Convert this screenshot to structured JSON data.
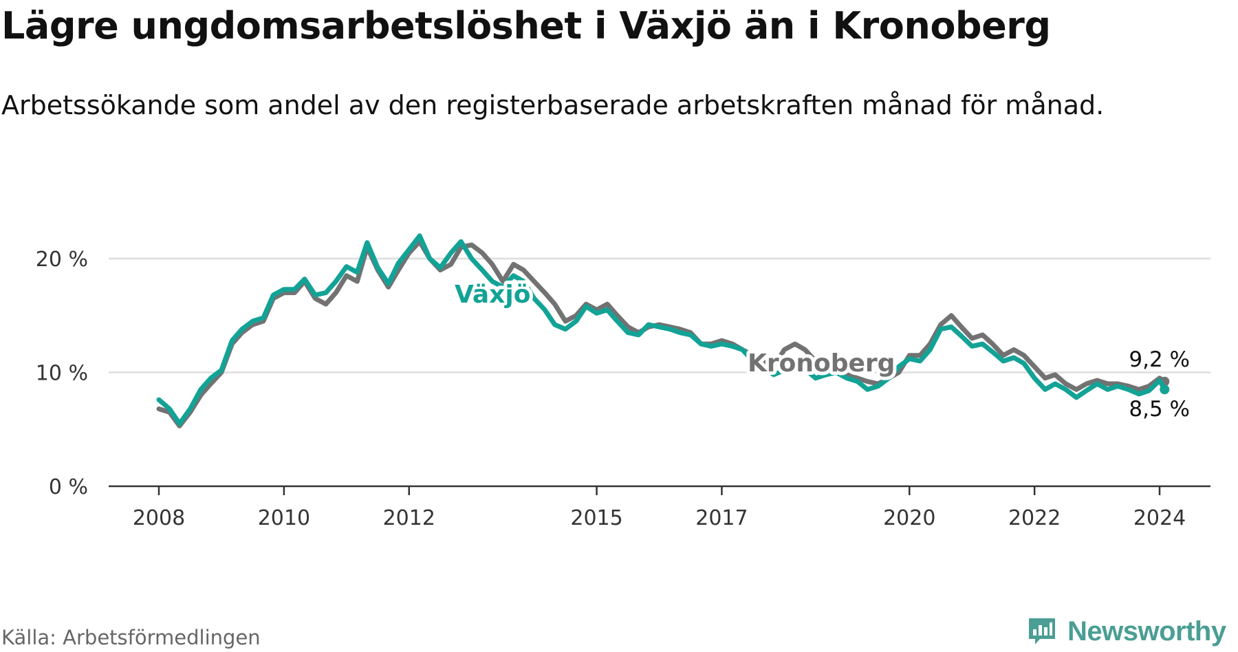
{
  "title": "Lägre ungdomsarbetslöshet i Växjö än i Kronoberg",
  "subtitle": "Arbetssökande som andel av den registerbaserade arbetskraften månad för månad.",
  "source": "Källa: Arbetsförmedlingen",
  "brand": "Newsworthy",
  "colors": {
    "vaxjo": "#12a396",
    "kronoberg": "#727272",
    "grid": "#dddddd",
    "axis": "#333333",
    "brand": "#4a9e94"
  },
  "chart_data": {
    "type": "line",
    "title": "Lägre ungdomsarbetslöshet i Växjö än i Kronoberg",
    "ylabel": "",
    "xlabel": "",
    "ylim": [
      0,
      20
    ],
    "xlim": [
      2007.6,
      2024.5
    ],
    "yticks": [
      {
        "value": 0,
        "label": "0 %"
      },
      {
        "value": 10,
        "label": "10 %"
      },
      {
        "value": 20,
        "label": "20 %"
      }
    ],
    "xticks": [
      {
        "value": 2008,
        "label": "2008"
      },
      {
        "value": 2010,
        "label": "2010"
      },
      {
        "value": 2012,
        "label": "2012"
      },
      {
        "value": 2015,
        "label": "2015"
      },
      {
        "value": 2017,
        "label": "2017"
      },
      {
        "value": 2020,
        "label": "2020"
      },
      {
        "value": 2022,
        "label": "2022"
      },
      {
        "value": 2024,
        "label": "2024"
      }
    ],
    "series": [
      {
        "name": "Kronoberg",
        "key": "kronoberg",
        "label": "Kronoberg",
        "end_label": "9,2 %",
        "points": [
          [
            2008.0,
            6.8
          ],
          [
            2008.17,
            6.5
          ],
          [
            2008.33,
            5.3
          ],
          [
            2008.5,
            6.5
          ],
          [
            2008.67,
            8.0
          ],
          [
            2008.83,
            9.0
          ],
          [
            2009.0,
            10.0
          ],
          [
            2009.17,
            12.5
          ],
          [
            2009.33,
            13.5
          ],
          [
            2009.5,
            14.2
          ],
          [
            2009.67,
            14.5
          ],
          [
            2009.83,
            16.5
          ],
          [
            2010.0,
            17.0
          ],
          [
            2010.17,
            17.0
          ],
          [
            2010.33,
            18.0
          ],
          [
            2010.5,
            16.5
          ],
          [
            2010.67,
            16.0
          ],
          [
            2010.83,
            17.0
          ],
          [
            2011.0,
            18.5
          ],
          [
            2011.17,
            18.0
          ],
          [
            2011.33,
            21.0
          ],
          [
            2011.5,
            19.0
          ],
          [
            2011.67,
            17.5
          ],
          [
            2011.83,
            19.0
          ],
          [
            2012.0,
            20.5
          ],
          [
            2012.17,
            21.5
          ],
          [
            2012.33,
            20.0
          ],
          [
            2012.5,
            19.0
          ],
          [
            2012.67,
            19.5
          ],
          [
            2012.83,
            21.0
          ],
          [
            2013.0,
            21.2
          ],
          [
            2013.17,
            20.5
          ],
          [
            2013.33,
            19.5
          ],
          [
            2013.5,
            18.0
          ],
          [
            2013.67,
            19.5
          ],
          [
            2013.83,
            19.0
          ],
          [
            2014.0,
            18.0
          ],
          [
            2014.17,
            17.0
          ],
          [
            2014.33,
            16.0
          ],
          [
            2014.5,
            14.5
          ],
          [
            2014.67,
            15.0
          ],
          [
            2014.83,
            16.0
          ],
          [
            2015.0,
            15.5
          ],
          [
            2015.17,
            16.0
          ],
          [
            2015.33,
            15.0
          ],
          [
            2015.5,
            14.0
          ],
          [
            2015.67,
            13.5
          ],
          [
            2015.83,
            14.0
          ],
          [
            2016.0,
            14.2
          ],
          [
            2016.17,
            14.0
          ],
          [
            2016.33,
            13.8
          ],
          [
            2016.5,
            13.5
          ],
          [
            2016.67,
            12.5
          ],
          [
            2016.83,
            12.5
          ],
          [
            2017.0,
            12.8
          ],
          [
            2017.17,
            12.5
          ],
          [
            2017.33,
            12.0
          ],
          [
            2017.5,
            11.5
          ],
          [
            2017.67,
            11.0
          ],
          [
            2017.83,
            10.5
          ],
          [
            2018.0,
            12.0
          ],
          [
            2018.17,
            12.5
          ],
          [
            2018.33,
            12.0
          ],
          [
            2018.5,
            11.0
          ],
          [
            2018.67,
            10.5
          ],
          [
            2018.83,
            10.0
          ],
          [
            2019.0,
            9.8
          ],
          [
            2019.17,
            9.5
          ],
          [
            2019.33,
            9.2
          ],
          [
            2019.5,
            9.0
          ],
          [
            2019.67,
            9.5
          ],
          [
            2019.83,
            10.0
          ],
          [
            2020.0,
            11.5
          ],
          [
            2020.17,
            11.5
          ],
          [
            2020.33,
            12.5
          ],
          [
            2020.5,
            14.2
          ],
          [
            2020.67,
            15.0
          ],
          [
            2020.83,
            14.0
          ],
          [
            2021.0,
            13.0
          ],
          [
            2021.17,
            13.3
          ],
          [
            2021.33,
            12.5
          ],
          [
            2021.5,
            11.5
          ],
          [
            2021.67,
            12.0
          ],
          [
            2021.83,
            11.5
          ],
          [
            2022.0,
            10.5
          ],
          [
            2022.17,
            9.5
          ],
          [
            2022.33,
            9.8
          ],
          [
            2022.5,
            9.0
          ],
          [
            2022.67,
            8.5
          ],
          [
            2022.83,
            9.0
          ],
          [
            2023.0,
            9.3
          ],
          [
            2023.17,
            9.0
          ],
          [
            2023.33,
            9.0
          ],
          [
            2023.5,
            8.8
          ],
          [
            2023.67,
            8.5
          ],
          [
            2023.83,
            8.8
          ],
          [
            2024.0,
            9.5
          ],
          [
            2024.08,
            9.2
          ]
        ]
      },
      {
        "name": "Växjö",
        "key": "vaxjo",
        "label": "Växjö",
        "end_label": "8,5 %",
        "points": [
          [
            2008.0,
            7.6
          ],
          [
            2008.17,
            6.8
          ],
          [
            2008.33,
            5.5
          ],
          [
            2008.5,
            6.8
          ],
          [
            2008.67,
            8.5
          ],
          [
            2008.83,
            9.5
          ],
          [
            2009.0,
            10.2
          ],
          [
            2009.17,
            12.8
          ],
          [
            2009.33,
            13.8
          ],
          [
            2009.5,
            14.5
          ],
          [
            2009.67,
            14.8
          ],
          [
            2009.83,
            16.8
          ],
          [
            2010.0,
            17.3
          ],
          [
            2010.17,
            17.3
          ],
          [
            2010.33,
            18.2
          ],
          [
            2010.5,
            16.8
          ],
          [
            2010.67,
            17.0
          ],
          [
            2010.83,
            18.0
          ],
          [
            2011.0,
            19.3
          ],
          [
            2011.17,
            18.8
          ],
          [
            2011.33,
            21.4
          ],
          [
            2011.5,
            19.2
          ],
          [
            2011.67,
            17.8
          ],
          [
            2011.83,
            19.6
          ],
          [
            2012.0,
            20.8
          ],
          [
            2012.17,
            22.0
          ],
          [
            2012.33,
            20.0
          ],
          [
            2012.5,
            19.2
          ],
          [
            2012.67,
            20.5
          ],
          [
            2012.83,
            21.5
          ],
          [
            2013.0,
            20.0
          ],
          [
            2013.17,
            19.0
          ],
          [
            2013.33,
            18.0
          ],
          [
            2013.5,
            17.5
          ],
          [
            2013.67,
            18.5
          ],
          [
            2013.83,
            18.0
          ],
          [
            2014.0,
            16.5
          ],
          [
            2014.17,
            15.5
          ],
          [
            2014.33,
            14.2
          ],
          [
            2014.5,
            13.8
          ],
          [
            2014.67,
            14.5
          ],
          [
            2014.83,
            15.8
          ],
          [
            2015.0,
            15.2
          ],
          [
            2015.17,
            15.5
          ],
          [
            2015.33,
            14.5
          ],
          [
            2015.5,
            13.5
          ],
          [
            2015.67,
            13.3
          ],
          [
            2015.83,
            14.2
          ],
          [
            2016.0,
            14.0
          ],
          [
            2016.17,
            13.8
          ],
          [
            2016.33,
            13.5
          ],
          [
            2016.5,
            13.3
          ],
          [
            2016.67,
            12.5
          ],
          [
            2016.83,
            12.3
          ],
          [
            2017.0,
            12.5
          ],
          [
            2017.17,
            12.3
          ],
          [
            2017.33,
            12.0
          ],
          [
            2017.5,
            11.0
          ],
          [
            2017.67,
            10.5
          ],
          [
            2017.83,
            9.8
          ],
          [
            2018.0,
            10.2
          ],
          [
            2018.17,
            10.5
          ],
          [
            2018.33,
            10.3
          ],
          [
            2018.5,
            9.5
          ],
          [
            2018.67,
            9.8
          ],
          [
            2018.83,
            10.0
          ],
          [
            2019.0,
            9.5
          ],
          [
            2019.17,
            9.2
          ],
          [
            2019.33,
            8.5
          ],
          [
            2019.5,
            8.8
          ],
          [
            2019.67,
            9.5
          ],
          [
            2019.83,
            10.5
          ],
          [
            2020.0,
            11.2
          ],
          [
            2020.17,
            11.0
          ],
          [
            2020.33,
            12.0
          ],
          [
            2020.5,
            13.8
          ],
          [
            2020.67,
            14.0
          ],
          [
            2020.83,
            13.2
          ],
          [
            2021.0,
            12.3
          ],
          [
            2021.17,
            12.5
          ],
          [
            2021.33,
            11.8
          ],
          [
            2021.5,
            11.0
          ],
          [
            2021.67,
            11.3
          ],
          [
            2021.83,
            10.8
          ],
          [
            2022.0,
            9.5
          ],
          [
            2022.17,
            8.5
          ],
          [
            2022.33,
            9.0
          ],
          [
            2022.5,
            8.5
          ],
          [
            2022.67,
            7.8
          ],
          [
            2022.83,
            8.4
          ],
          [
            2023.0,
            9.0
          ],
          [
            2023.17,
            8.5
          ],
          [
            2023.33,
            8.8
          ],
          [
            2023.5,
            8.5
          ],
          [
            2023.67,
            8.1
          ],
          [
            2023.83,
            8.4
          ],
          [
            2024.0,
            9.3
          ],
          [
            2024.08,
            8.5
          ]
        ]
      }
    ]
  }
}
